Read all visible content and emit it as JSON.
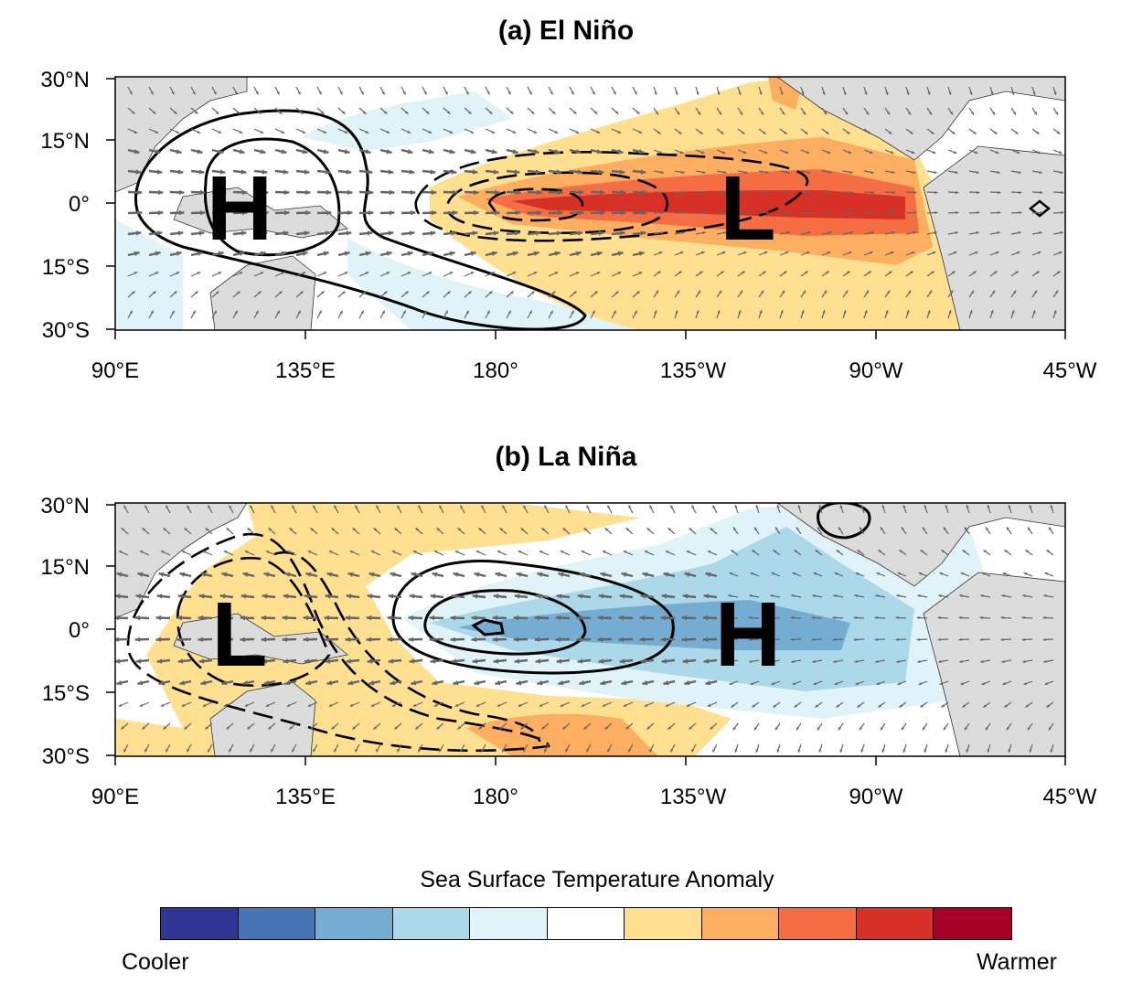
{
  "panel_a": {
    "title": "(a) El Niño",
    "high_label": "H",
    "low_label": "L"
  },
  "panel_b": {
    "title": "(b) La Niña",
    "high_label": "H",
    "low_label": "L"
  },
  "axes": {
    "lat_ticks": [
      "30°N",
      "15°N",
      "0°",
      "15°S",
      "30°S"
    ],
    "lon_ticks": [
      "90°E",
      "135°E",
      "180°",
      "135°W",
      "90°W",
      "45°W"
    ]
  },
  "colorbar": {
    "title": "Sea Surface Temperature Anomaly",
    "low_label": "Cooler",
    "high_label": "Warmer",
    "colors": [
      "#313695",
      "#4575b4",
      "#74add1",
      "#abd9e9",
      "#e0f3f8",
      "#ffffff",
      "#fee090",
      "#fdae61",
      "#f46d43",
      "#d73027",
      "#a50026"
    ]
  }
}
